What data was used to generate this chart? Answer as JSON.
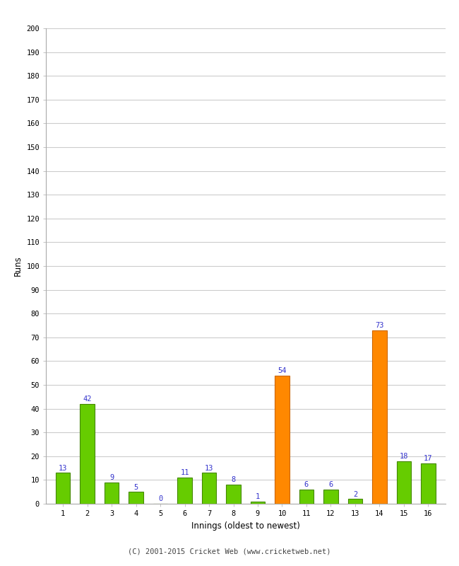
{
  "innings": [
    1,
    2,
    3,
    4,
    5,
    6,
    7,
    8,
    9,
    10,
    11,
    12,
    13,
    14,
    15,
    16
  ],
  "runs": [
    13,
    42,
    9,
    5,
    0,
    11,
    13,
    8,
    1,
    54,
    6,
    6,
    2,
    73,
    18,
    17
  ],
  "colors": [
    "#66cc00",
    "#66cc00",
    "#66cc00",
    "#66cc00",
    "#66cc00",
    "#66cc00",
    "#66cc00",
    "#66cc00",
    "#66cc00",
    "#ff8800",
    "#66cc00",
    "#66cc00",
    "#66cc00",
    "#ff8800",
    "#66cc00",
    "#66cc00"
  ],
  "xlabel": "Innings (oldest to newest)",
  "ylabel": "Runs",
  "ylim": [
    0,
    200
  ],
  "yticks": [
    0,
    10,
    20,
    30,
    40,
    50,
    60,
    70,
    80,
    90,
    100,
    110,
    120,
    130,
    140,
    150,
    160,
    170,
    180,
    190,
    200
  ],
  "label_color": "#3333cc",
  "background_color": "#ffffff",
  "grid_color": "#cccccc",
  "bar_edge_color": "#448800",
  "orange_edge_color": "#cc6600",
  "footer": "(C) 2001-2015 Cricket Web (www.cricketweb.net)",
  "footer_color": "#444444"
}
